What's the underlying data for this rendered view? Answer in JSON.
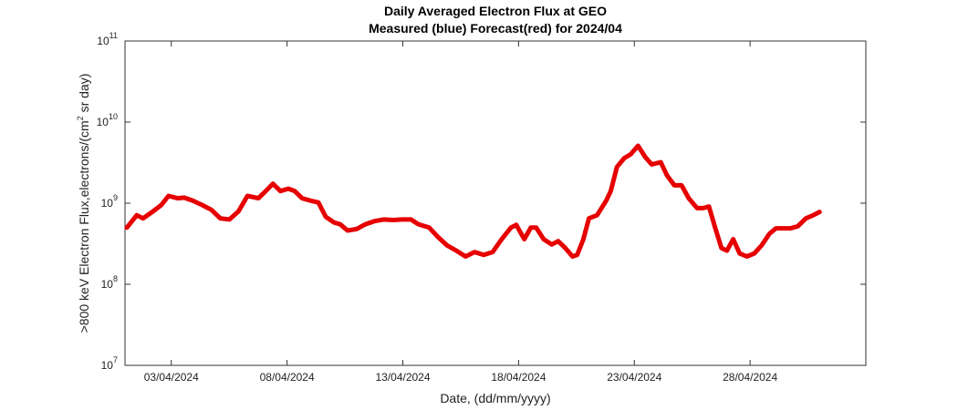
{
  "chart_data": {
    "type": "line",
    "title": "Daily Averaged Electron Flux at GEO",
    "subtitle": "Measured (blue) Forecast(red) for 2024/04",
    "xlabel": "Date, (dd/mm/yyyy)",
    "ylabel": [
      ">800 keV Electron Flux,electrons/(cm",
      "2",
      " sr day)"
    ],
    "color": "#e60000",
    "log_y": true,
    "xlim": [
      0,
      32
    ],
    "xticks": [
      {
        "value": 2,
        "label": "03/04/2024"
      },
      {
        "value": 7,
        "label": "08/04/2024"
      },
      {
        "value": 12,
        "label": "13/04/2024"
      },
      {
        "value": 17,
        "label": "18/04/2024"
      },
      {
        "value": 22,
        "label": "23/04/2024"
      },
      {
        "value": 27,
        "label": "28/04/2024"
      }
    ],
    "ylim": [
      10000000.0,
      100000000000.0
    ],
    "yticks": [
      {
        "value": 10000000.0,
        "label": "10",
        "exponent": "7"
      },
      {
        "value": 100000000.0,
        "label": "10",
        "exponent": "8"
      },
      {
        "value": 1000000000.0,
        "label": "10",
        "exponent": "9"
      },
      {
        "value": 10000000000.0,
        "label": "10",
        "exponent": "10"
      },
      {
        "value": 100000000000.0,
        "label": "10",
        "exponent": "11"
      }
    ],
    "x": [
      0.08,
      0.51,
      0.78,
      1.18,
      1.57,
      1.88,
      2.27,
      2.55,
      2.94,
      3.33,
      3.73,
      4.12,
      4.51,
      4.9,
      5.29,
      5.76,
      6.08,
      6.39,
      6.71,
      7.06,
      7.33,
      7.65,
      8.04,
      8.35,
      8.67,
      9.02,
      9.29,
      9.61,
      10.0,
      10.39,
      10.78,
      11.18,
      11.57,
      11.96,
      12.35,
      12.67,
      13.14,
      13.53,
      13.92,
      14.31,
      14.71,
      15.1,
      15.49,
      15.88,
      16.27,
      16.67,
      16.9,
      17.25,
      17.53,
      17.76,
      18.08,
      18.43,
      18.71,
      19.02,
      19.33,
      19.53,
      19.8,
      20.04,
      20.39,
      20.78,
      20.98,
      21.25,
      21.57,
      21.84,
      22.16,
      22.47,
      22.75,
      23.14,
      23.41,
      23.73,
      24.04,
      24.35,
      24.71,
      24.98,
      25.22,
      25.49,
      25.76,
      26.0,
      26.27,
      26.55,
      26.86,
      27.18,
      27.49,
      27.84,
      28.12,
      28.43,
      28.75,
      29.06,
      29.41,
      29.73,
      30.0
    ],
    "values": [
      500000000.0,
      710000000.0,
      650000000.0,
      780000000.0,
      950000000.0,
      1230000000.0,
      1150000000.0,
      1170000000.0,
      1070000000.0,
      950000000.0,
      830000000.0,
      650000000.0,
      630000000.0,
      790000000.0,
      1230000000.0,
      1150000000.0,
      1410000000.0,
      1740000000.0,
      1410000000.0,
      1510000000.0,
      1410000000.0,
      1150000000.0,
      1070000000.0,
      1020000000.0,
      680000000.0,
      580000000.0,
      550000000.0,
      460000000.0,
      480000000.0,
      550000000.0,
      600000000.0,
      630000000.0,
      620000000.0,
      630000000.0,
      630000000.0,
      550000000.0,
      500000000.0,
      380000000.0,
      300000000.0,
      260000000.0,
      220000000.0,
      250000000.0,
      230000000.0,
      250000000.0,
      360000000.0,
      500000000.0,
      540000000.0,
      360000000.0,
      500000000.0,
      500000000.0,
      360000000.0,
      310000000.0,
      340000000.0,
      280000000.0,
      220000000.0,
      230000000.0,
      360000000.0,
      650000000.0,
      710000000.0,
      1070000000.0,
      1410000000.0,
      2800000000.0,
      3600000000.0,
      4000000000.0,
      5100000000.0,
      3700000000.0,
      3000000000.0,
      3200000000.0,
      2200000000.0,
      1660000000.0,
      1660000000.0,
      1150000000.0,
      870000000.0,
      870000000.0,
      910000000.0,
      500000000.0,
      280000000.0,
      260000000.0,
      360000000.0,
      240000000.0,
      220000000.0,
      240000000.0,
      300000000.0,
      420000000.0,
      490000000.0,
      490000000.0,
      490000000.0,
      520000000.0,
      650000000.0,
      710000000.0,
      780000000.0
    ]
  }
}
